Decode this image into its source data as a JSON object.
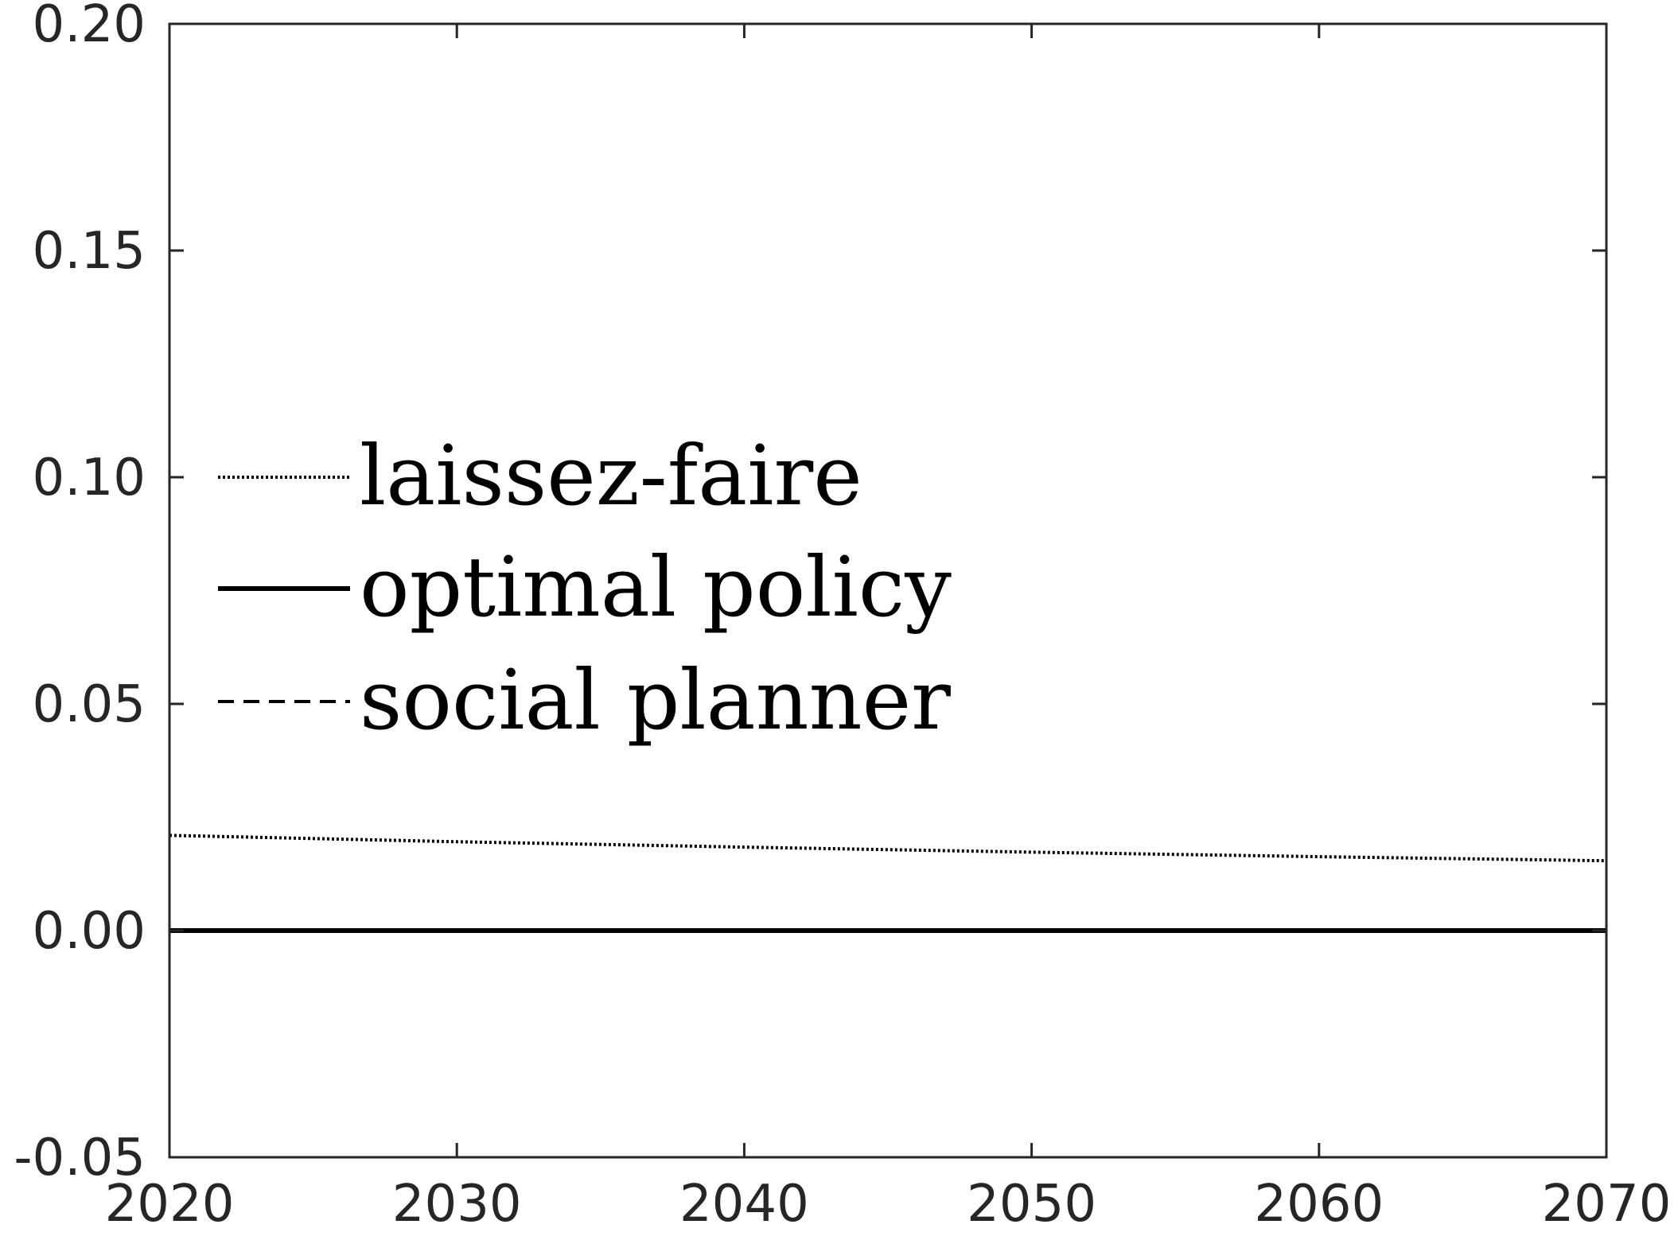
{
  "chart_data": {
    "type": "line",
    "title": "",
    "xlabel": "",
    "ylabel": "",
    "xlim": [
      2020,
      2070
    ],
    "ylim": [
      -0.05,
      0.2
    ],
    "x_ticks": [
      2020,
      2030,
      2040,
      2050,
      2060,
      2070
    ],
    "y_ticks": [
      -0.05,
      0.0,
      0.05,
      0.1,
      0.15,
      0.2
    ],
    "x_tick_labels": [
      "2020",
      "2030",
      "2040",
      "2050",
      "2060",
      "2070"
    ],
    "y_tick_labels": [
      "-0.05",
      "0.00",
      "0.05",
      "0.10",
      "0.15",
      "0.20"
    ],
    "grid": false,
    "legend_position": "center-left",
    "series": [
      {
        "name": "laissez-faire",
        "style": "dotted",
        "color": "#000000",
        "x": [
          2020,
          2030,
          2040,
          2050,
          2060,
          2070
        ],
        "values": [
          0.021,
          0.0196,
          0.0184,
          0.0173,
          0.0163,
          0.0154
        ]
      },
      {
        "name": "optimal policy",
        "style": "solid",
        "color": "#000000",
        "x": [
          2020,
          2030,
          2040,
          2050,
          2060,
          2070
        ],
        "values": [
          0.0,
          0.0,
          0.0,
          0.0,
          0.0,
          0.0
        ]
      },
      {
        "name": "social planner",
        "style": "dashed",
        "color": "#000000",
        "x": [
          2020,
          2030,
          2040,
          2050,
          2060,
          2070
        ],
        "values": [
          0.0,
          0.0,
          0.0,
          0.0,
          0.0,
          0.0
        ]
      }
    ]
  }
}
